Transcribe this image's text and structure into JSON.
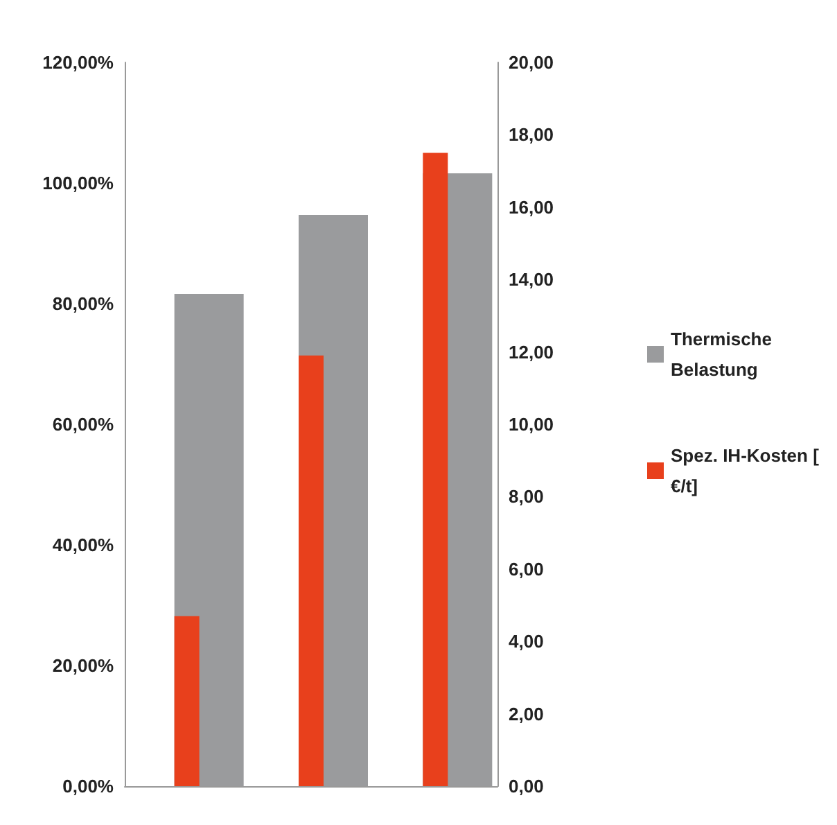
{
  "chart_data": {
    "type": "bar",
    "categories": [
      null,
      null,
      null
    ],
    "series": [
      {
        "name": "Thermische Belastung",
        "color": "#9a9b9d",
        "values": [
          81.6,
          94.7,
          101.6
        ]
      },
      {
        "name": "Spez. IH-Kosten [€/t]",
        "color": "#e8401c",
        "values": [
          4.7,
          11.9,
          17.5
        ],
        "axis": "y2"
      }
    ],
    "ylim": [
      0,
      120
    ],
    "yticks": [
      {
        "value": 0,
        "label": "0,00%"
      },
      {
        "value": 20,
        "label": "20,00%"
      },
      {
        "value": 40,
        "label": "40,00%"
      },
      {
        "value": 60,
        "label": "60,00%"
      },
      {
        "value": 80,
        "label": "80,00%"
      },
      {
        "value": 100,
        "label": "100,00%"
      },
      {
        "value": 120,
        "label": "120,00%"
      }
    ],
    "y2lim": [
      0,
      20
    ],
    "y2ticks": [
      {
        "value": 0,
        "label": "0,00"
      },
      {
        "value": 2,
        "label": "2,00"
      },
      {
        "value": 4,
        "label": "4,00"
      },
      {
        "value": 6,
        "label": "6,00"
      },
      {
        "value": 8,
        "label": "8,00"
      },
      {
        "value": 10,
        "label": "10,00"
      },
      {
        "value": 12,
        "label": "12,00"
      },
      {
        "value": 14,
        "label": "14,00"
      },
      {
        "value": 16,
        "label": "16,00"
      },
      {
        "value": 18,
        "label": "18,00"
      },
      {
        "value": 20,
        "label": "20,00"
      }
    ],
    "grid": false,
    "legend": "right"
  }
}
